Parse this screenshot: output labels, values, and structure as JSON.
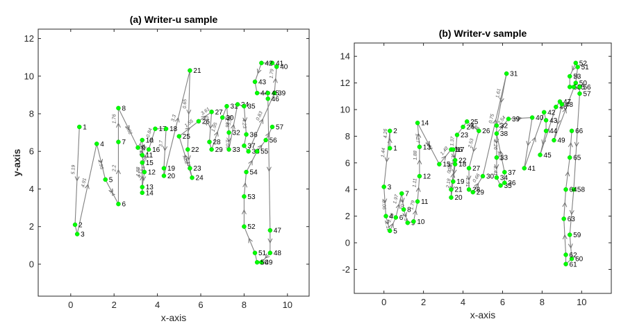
{
  "chart_data": [
    {
      "type": "scatter",
      "title": "(a) Writer-u sample",
      "xlabel": "x-axis",
      "ylabel": "y-axis",
      "xlim": [
        -1.5,
        11
      ],
      "ylim": [
        -1.7,
        12.5
      ],
      "xticks": [
        0,
        2,
        4,
        6,
        8,
        10
      ],
      "yticks": [
        0,
        2,
        4,
        6,
        8,
        10,
        12
      ],
      "grid": false,
      "connected": true,
      "point_color": "#00ff00",
      "line_color": "#808080",
      "points": [
        {
          "label": "1",
          "x": 0.4,
          "y": 7.3
        },
        {
          "label": "2",
          "x": 0.2,
          "y": 2.1
        },
        {
          "label": "3",
          "x": 0.3,
          "y": 1.6
        },
        {
          "label": "4",
          "x": 1.2,
          "y": 6.4
        },
        {
          "label": "5",
          "x": 1.6,
          "y": 4.5
        },
        {
          "label": "6",
          "x": 2.2,
          "y": 3.2
        },
        {
          "label": "7",
          "x": 2.2,
          "y": 6.5
        },
        {
          "label": "8",
          "x": 2.2,
          "y": 8.3
        },
        {
          "label": "9",
          "x": 3.1,
          "y": 6.2
        },
        {
          "label": "10",
          "x": 3.3,
          "y": 6.6
        },
        {
          "label": "11",
          "x": 3.3,
          "y": 5.8
        },
        {
          "label": "12",
          "x": 3.4,
          "y": 4.9
        },
        {
          "label": "13",
          "x": 3.3,
          "y": 4.1
        },
        {
          "label": "14",
          "x": 3.3,
          "y": 3.8
        },
        {
          "label": "15",
          "x": 3.3,
          "y": 5.4
        },
        {
          "label": "16",
          "x": 3.6,
          "y": 6.1
        },
        {
          "label": "17",
          "x": 3.9,
          "y": 7.2
        },
        {
          "label": "18",
          "x": 4.4,
          "y": 7.2
        },
        {
          "label": "19",
          "x": 4.3,
          "y": 5.1
        },
        {
          "label": "20",
          "x": 4.3,
          "y": 4.7
        },
        {
          "label": "21",
          "x": 5.5,
          "y": 10.3
        },
        {
          "label": "22",
          "x": 5.4,
          "y": 6.1
        },
        {
          "label": "23",
          "x": 5.5,
          "y": 5.1
        },
        {
          "label": "24",
          "x": 5.6,
          "y": 4.6
        },
        {
          "label": "25",
          "x": 5.0,
          "y": 6.8
        },
        {
          "label": "26",
          "x": 5.9,
          "y": 7.6
        },
        {
          "label": "27",
          "x": 6.5,
          "y": 8.1
        },
        {
          "label": "28",
          "x": 6.4,
          "y": 6.5
        },
        {
          "label": "29",
          "x": 6.5,
          "y": 6.1
        },
        {
          "label": "30",
          "x": 7.0,
          "y": 7.8
        },
        {
          "label": "31",
          "x": 7.2,
          "y": 8.4
        },
        {
          "label": "32",
          "x": 7.3,
          "y": 7.0
        },
        {
          "label": "33",
          "x": 7.3,
          "y": 6.1
        },
        {
          "label": "34",
          "x": 7.7,
          "y": 8.5
        },
        {
          "label": "35",
          "x": 8.0,
          "y": 8.4
        },
        {
          "label": "36",
          "x": 8.1,
          "y": 6.9
        },
        {
          "label": "37",
          "x": 8.0,
          "y": 6.3
        },
        {
          "label": "38",
          "x": 8.2,
          "y": 6.0
        },
        {
          "label": "39",
          "x": 9.4,
          "y": 9.1
        },
        {
          "label": "40",
          "x": 9.5,
          "y": 10.5
        },
        {
          "label": "41",
          "x": 9.3,
          "y": 10.7
        },
        {
          "label": "42",
          "x": 8.8,
          "y": 10.7
        },
        {
          "label": "43",
          "x": 8.5,
          "y": 9.7
        },
        {
          "label": "44",
          "x": 8.6,
          "y": 9.1
        },
        {
          "label": "45",
          "x": 9.1,
          "y": 9.1
        },
        {
          "label": "46",
          "x": 9.1,
          "y": 8.8
        },
        {
          "label": "47",
          "x": 9.2,
          "y": 1.8
        },
        {
          "label": "48",
          "x": 9.2,
          "y": 0.6
        },
        {
          "label": "49",
          "x": 8.8,
          "y": 0.1
        },
        {
          "label": "50",
          "x": 8.6,
          "y": 0.1
        },
        {
          "label": "51",
          "x": 8.5,
          "y": 0.6
        },
        {
          "label": "52",
          "x": 8.0,
          "y": 2.0
        },
        {
          "label": "53",
          "x": 8.0,
          "y": 3.6
        },
        {
          "label": "54",
          "x": 8.1,
          "y": 4.9
        },
        {
          "label": "55",
          "x": 8.6,
          "y": 6.0
        },
        {
          "label": "56",
          "x": 9.0,
          "y": 6.6
        },
        {
          "label": "57",
          "x": 9.3,
          "y": 7.3
        }
      ],
      "segment_annotations": [
        "5.19",
        "4.91",
        "1.95",
        "3.4",
        "2.2",
        "1.76",
        "2.82",
        "0.61",
        "1.72",
        "4.17",
        "1.88",
        "2.12",
        "0.84",
        "3.7",
        "3.3",
        "0.65",
        "1.17",
        "1.62",
        "1.55",
        "3.61",
        "4.23",
        "1.95",
        "1.46",
        "1.09",
        "5.86",
        "4.23",
        "0.83",
        "1.79"
      ]
    },
    {
      "type": "scatter",
      "title": "(b) Writer-v sample",
      "xlabel": "x-axis",
      "ylabel": "",
      "xlim": [
        -1.5,
        11.5
      ],
      "ylim": [
        -3.8,
        15
      ],
      "xticks": [
        0,
        2,
        4,
        6,
        8,
        10
      ],
      "yticks": [
        -2,
        0,
        2,
        4,
        6,
        8,
        10,
        12,
        14
      ],
      "grid": false,
      "connected": true,
      "point_color": "#00ff00",
      "line_color": "#808080",
      "points": [
        {
          "label": "1",
          "x": 0.3,
          "y": 7.1
        },
        {
          "label": "2",
          "x": 0.3,
          "y": 8.4
        },
        {
          "label": "3",
          "x": 0.0,
          "y": 4.2
        },
        {
          "label": "4",
          "x": 0.1,
          "y": 2.0
        },
        {
          "label": "5",
          "x": 0.3,
          "y": 0.9
        },
        {
          "label": "6",
          "x": 0.6,
          "y": 1.9
        },
        {
          "label": "7",
          "x": 0.9,
          "y": 3.7
        },
        {
          "label": "8",
          "x": 1.0,
          "y": 2.5
        },
        {
          "label": "9",
          "x": 1.2,
          "y": 1.5
        },
        {
          "label": "10",
          "x": 1.5,
          "y": 1.6
        },
        {
          "label": "11",
          "x": 1.7,
          "y": 3.1
        },
        {
          "label": "12",
          "x": 1.8,
          "y": 5.0
        },
        {
          "label": "13",
          "x": 1.8,
          "y": 7.2
        },
        {
          "label": "14",
          "x": 1.7,
          "y": 9.0
        },
        {
          "label": "15",
          "x": 2.8,
          "y": 5.9
        },
        {
          "label": "16",
          "x": 3.4,
          "y": 7.0
        },
        {
          "label": "17",
          "x": 3.5,
          "y": 7.0
        },
        {
          "label": "18",
          "x": 3.6,
          "y": 5.9
        },
        {
          "label": "19",
          "x": 3.5,
          "y": 4.6
        },
        {
          "label": "20",
          "x": 3.4,
          "y": 3.4
        },
        {
          "label": "21",
          "x": 3.4,
          "y": 4.0
        },
        {
          "label": "22",
          "x": 3.6,
          "y": 6.2
        },
        {
          "label": "23",
          "x": 3.7,
          "y": 8.1
        },
        {
          "label": "24",
          "x": 4.0,
          "y": 8.7
        },
        {
          "label": "25",
          "x": 4.2,
          "y": 9.1
        },
        {
          "label": "26",
          "x": 4.8,
          "y": 8.4
        },
        {
          "label": "27",
          "x": 4.3,
          "y": 5.6
        },
        {
          "label": "28",
          "x": 4.3,
          "y": 4.0
        },
        {
          "label": "29",
          "x": 4.5,
          "y": 3.8
        },
        {
          "label": "30",
          "x": 5.0,
          "y": 5.0
        },
        {
          "label": "31",
          "x": 6.2,
          "y": 12.7
        },
        {
          "label": "32",
          "x": 5.7,
          "y": 8.8
        },
        {
          "label": "33",
          "x": 5.7,
          "y": 6.4
        },
        {
          "label": "34",
          "x": 5.7,
          "y": 4.9
        },
        {
          "label": "35",
          "x": 5.9,
          "y": 4.3
        },
        {
          "label": "36",
          "x": 6.1,
          "y": 4.5
        },
        {
          "label": "37",
          "x": 6.1,
          "y": 5.3
        },
        {
          "label": "38",
          "x": 5.7,
          "y": 8.2
        },
        {
          "label": "39",
          "x": 6.3,
          "y": 9.3
        },
        {
          "label": "40",
          "x": 7.5,
          "y": 9.4
        },
        {
          "label": "41",
          "x": 7.1,
          "y": 5.6
        },
        {
          "label": "42",
          "x": 8.1,
          "y": 9.8
        },
        {
          "label": "43",
          "x": 8.2,
          "y": 9.2
        },
        {
          "label": "44",
          "x": 8.2,
          "y": 8.4
        },
        {
          "label": "45",
          "x": 7.9,
          "y": 6.6
        },
        {
          "label": "46",
          "x": 8.7,
          "y": 10.2
        },
        {
          "label": "47",
          "x": 8.9,
          "y": 10.6
        },
        {
          "label": "48",
          "x": 9.0,
          "y": 10.4
        },
        {
          "label": "49",
          "x": 8.6,
          "y": 7.7
        },
        {
          "label": "50",
          "x": 9.7,
          "y": 12.0
        },
        {
          "label": "51",
          "x": 9.8,
          "y": 13.2
        },
        {
          "label": "52",
          "x": 9.7,
          "y": 13.5
        },
        {
          "label": "53",
          "x": 9.4,
          "y": 12.5
        },
        {
          "label": "54",
          "x": 9.4,
          "y": 11.7
        },
        {
          "label": "55",
          "x": 9.6,
          "y": 11.7
        },
        {
          "label": "56",
          "x": 9.9,
          "y": 11.7
        },
        {
          "label": "57",
          "x": 9.9,
          "y": 11.2
        },
        {
          "label": "58",
          "x": 9.6,
          "y": 4.0
        },
        {
          "label": "59",
          "x": 9.4,
          "y": 0.6
        },
        {
          "label": "60",
          "x": 9.5,
          "y": -1.2
        },
        {
          "label": "61",
          "x": 9.2,
          "y": -1.6
        },
        {
          "label": "62",
          "x": 9.2,
          "y": -0.9
        },
        {
          "label": "63",
          "x": 9.1,
          "y": 1.8
        },
        {
          "label": "64",
          "x": 9.2,
          "y": 4.0
        },
        {
          "label": "65",
          "x": 9.4,
          "y": 6.4
        },
        {
          "label": "66",
          "x": 9.5,
          "y": 8.4
        }
      ],
      "segment_annotations": [
        "4.26",
        "1.44",
        "0.06",
        "1.11",
        "1.98",
        "1.97",
        "2.03",
        "2.34",
        "1.79",
        "1.11",
        "1.88",
        "1.17",
        "3.41",
        "1.48",
        "1.66",
        "0.81",
        "2.18",
        "0.36",
        "1.37",
        "3.88",
        "2.53",
        "1.91",
        "0.66",
        "0.75",
        "1.61",
        "2.26",
        "2.41",
        "2.29",
        "2.54"
      ]
    }
  ]
}
